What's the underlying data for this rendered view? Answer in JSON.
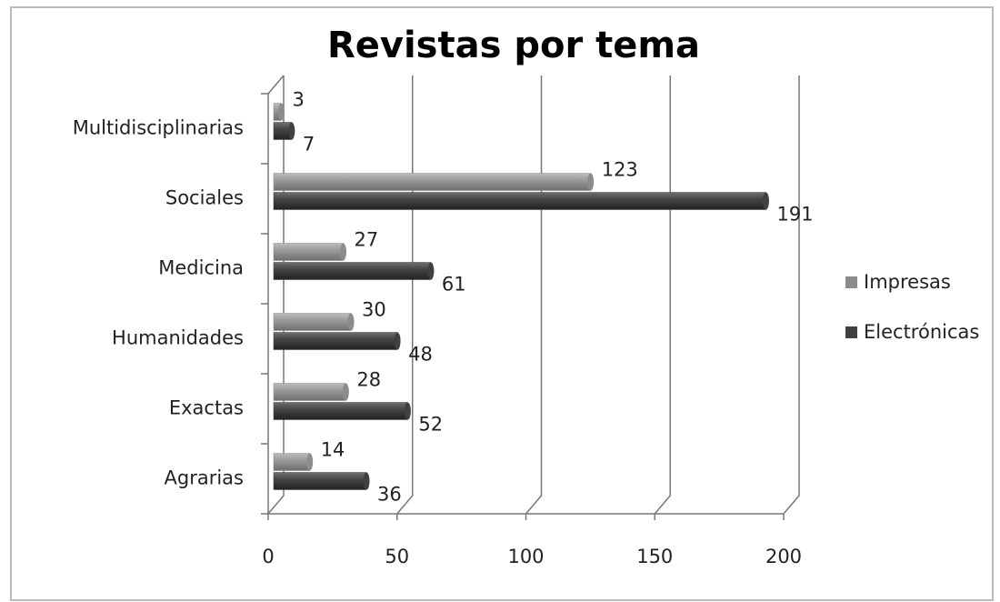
{
  "chart_data": {
    "type": "bar",
    "orientation": "horizontal",
    "title": "Revistas por tema",
    "categories": [
      "Agrarias",
      "Exactas",
      "Humanidades",
      "Medicina",
      "Sociales",
      "Multidisciplinarias"
    ],
    "series": [
      {
        "name": "Impresas",
        "color": "#8c8c8c",
        "values": [
          14,
          28,
          30,
          27,
          123,
          3
        ]
      },
      {
        "name": "Electrónicas",
        "color": "#404040",
        "values": [
          36,
          52,
          48,
          61,
          191,
          7
        ]
      }
    ],
    "xlim": [
      0,
      200
    ],
    "xticks": [
      0,
      50,
      100,
      150,
      200
    ],
    "grid": true,
    "legend": "right"
  }
}
